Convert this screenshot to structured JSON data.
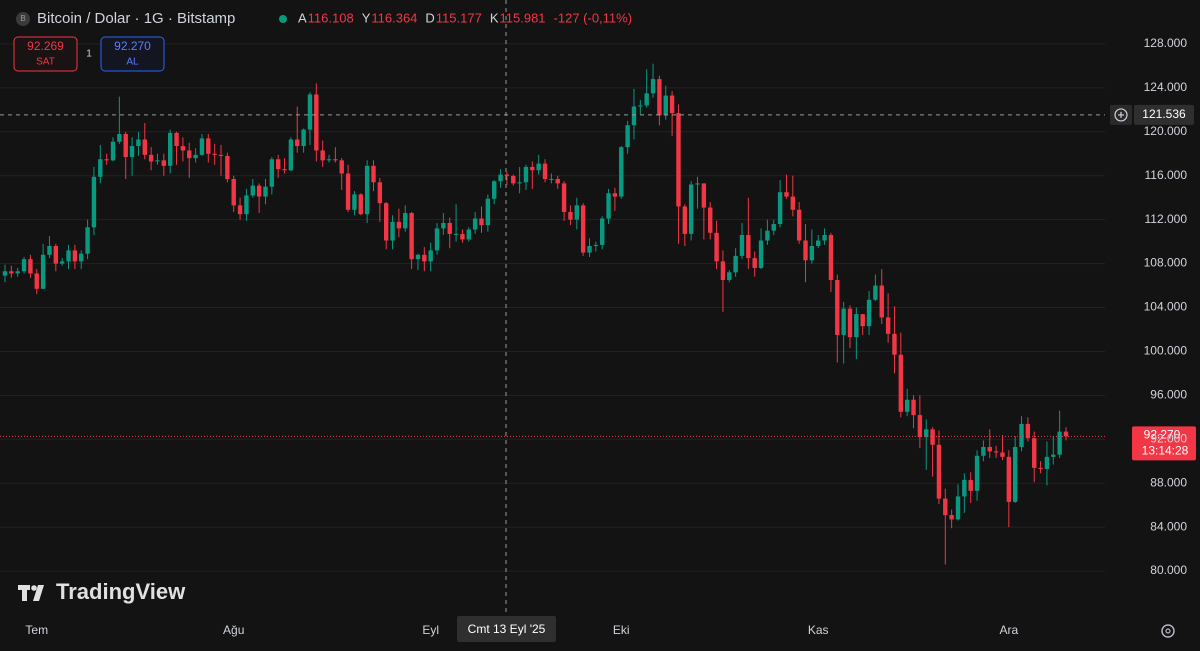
{
  "header": {
    "symbol": "Bitcoin / Dolar · 1G · Bitstamp",
    "ohlc": [
      {
        "key": "A",
        "value": "116.108"
      },
      {
        "key": "Y",
        "value": "116.364"
      },
      {
        "key": "D",
        "value": "115.177"
      },
      {
        "key": "K",
        "value": "115.981"
      }
    ],
    "change": "-127 (-0,11%)"
  },
  "trade": {
    "sell_price": "92.269",
    "sell_label": "SAT",
    "spread": "1",
    "buy_price": "92.270",
    "buy_label": "AL"
  },
  "brand": "TradingView",
  "chart_data": {
    "type": "candlestick",
    "up_color": "#089981",
    "down_color": "#f23645",
    "grid": true,
    "ylim": [
      76000,
      132000
    ],
    "yticks": [
      {
        "value": 80000,
        "label": "80.000"
      },
      {
        "value": 84000,
        "label": "84.000"
      },
      {
        "value": 88000,
        "label": "88.000"
      },
      {
        "value": 92000,
        "label": "92.000"
      },
      {
        "value": 96000,
        "label": "96.000"
      },
      {
        "value": 100000,
        "label": "100.000"
      },
      {
        "value": 104000,
        "label": "104.000"
      },
      {
        "value": 108000,
        "label": "108.000"
      },
      {
        "value": 112000,
        "label": "112.000"
      },
      {
        "value": 116000,
        "label": "116.000"
      },
      {
        "value": 120000,
        "label": "120.000"
      },
      {
        "value": 124000,
        "label": "124.000"
      },
      {
        "value": 128000,
        "label": "128.000"
      }
    ],
    "categories": [
      null,
      null,
      null,
      null,
      null,
      "Tem",
      null,
      null,
      null,
      null,
      null,
      null,
      null,
      null,
      null,
      null,
      null,
      null,
      null,
      null,
      null,
      null,
      null,
      null,
      null,
      null,
      null,
      null,
      null,
      null,
      null,
      null,
      null,
      null,
      null,
      null,
      "Ağu",
      null,
      null,
      null,
      null,
      null,
      null,
      null,
      null,
      null,
      null,
      null,
      null,
      null,
      null,
      null,
      null,
      null,
      null,
      null,
      null,
      null,
      null,
      null,
      null,
      null,
      null,
      null,
      null,
      null,
      null,
      "Eyl",
      null,
      null,
      null,
      null,
      null,
      null,
      null,
      null,
      null,
      null,
      null,
      null,
      null,
      null,
      null,
      null,
      null,
      null,
      null,
      null,
      null,
      null,
      null,
      null,
      null,
      null,
      null,
      null,
      null,
      "Eki",
      null,
      null,
      null,
      null,
      null,
      null,
      null,
      null,
      null,
      null,
      null,
      null,
      null,
      null,
      null,
      null,
      null,
      null,
      null,
      null,
      null,
      null,
      null,
      null,
      null,
      null,
      null,
      null,
      null,
      null,
      "Kas",
      null,
      null,
      null,
      null,
      null,
      null,
      null,
      null,
      null,
      null,
      null,
      null,
      null,
      null,
      null,
      null,
      null,
      null,
      null,
      null,
      null,
      null,
      null,
      null,
      null,
      null,
      null,
      null,
      null,
      "Ara",
      null,
      null,
      null,
      null,
      null,
      null,
      null,
      null,
      null
    ],
    "open": [
      106900,
      107300,
      107100,
      107300,
      108400,
      107100,
      105700,
      108800,
      109600,
      108000,
      108200,
      109200,
      108200,
      108900,
      111300,
      115900,
      117500,
      117400,
      119100,
      119800,
      117700,
      118700,
      119300,
      117900,
      117300,
      117400,
      116900,
      119900,
      118700,
      118300,
      117600,
      117900,
      119400,
      118000,
      117900,
      117800,
      115700,
      113300,
      112500,
      114200,
      115100,
      114100,
      115000,
      117500,
      116600,
      116500,
      119300,
      118700,
      120200,
      123400,
      118300,
      117400,
      117500,
      117400,
      116200,
      112900,
      114300,
      112500,
      116900,
      115400,
      113500,
      110100,
      111800,
      111200,
      112600,
      108400,
      108800,
      108200,
      109200,
      111200,
      111700,
      110700,
      110700,
      110200,
      111100,
      112100,
      111500,
      113900,
      115500,
      116108,
      115981,
      115300,
      115400,
      116800,
      116500,
      117100,
      115700,
      115700,
      115300,
      112700,
      112000,
      113300,
      109000,
      109600,
      109700,
      112100,
      114400,
      114100,
      118600,
      120600,
      122300,
      122400,
      123500,
      124800,
      121500,
      123300,
      121700,
      113200,
      110700,
      115200,
      115300,
      113100,
      110800,
      108200,
      106500,
      107200,
      108700,
      110600,
      108500,
      107600,
      110100,
      111000,
      111600,
      114500,
      114100,
      112900,
      110100,
      108300,
      109600,
      110100,
      110600,
      106500,
      101500,
      103900,
      101300,
      103400,
      102300,
      104700,
      106000,
      103100,
      101600,
      99700,
      94500,
      95600,
      94200,
      92200,
      92900,
      91500,
      86600,
      85100,
      84700,
      86800,
      88300,
      87300,
      90500,
      91300,
      90900,
      90800,
      90400,
      86300,
      91300,
      93400,
      92100,
      89400,
      89300,
      90400,
      90600,
      92700
    ],
    "high": [
      107900,
      107800,
      107600,
      108600,
      108800,
      107500,
      109800,
      110500,
      109800,
      108500,
      109700,
      109700,
      109200,
      112000,
      116800,
      118800,
      118000,
      119500,
      123200,
      120000,
      119500,
      120000,
      120800,
      118600,
      118000,
      118000,
      120200,
      120000,
      119500,
      119000,
      118500,
      119800,
      119800,
      118900,
      118800,
      118100,
      116000,
      114000,
      114800,
      115700,
      115300,
      115700,
      117700,
      117900,
      117600,
      119500,
      122300,
      120300,
      123600,
      124400,
      119200,
      117900,
      118600,
      117600,
      117000,
      114600,
      114400,
      117400,
      117400,
      115800,
      113600,
      112400,
      113000,
      113300,
      112700,
      108900,
      109500,
      109900,
      111700,
      112600,
      112200,
      113400,
      111100,
      111300,
      112700,
      113200,
      114300,
      115600,
      116600,
      116364,
      116100,
      116800,
      117000,
      117300,
      117900,
      117500,
      116200,
      116000,
      115500,
      113300,
      114000,
      113500,
      110300,
      110000,
      112300,
      114800,
      114900,
      118700,
      121000,
      123900,
      122900,
      125700,
      126200,
      125100,
      124200,
      123700,
      122500,
      113400,
      115500,
      115900,
      115300,
      113600,
      111900,
      109200,
      107400,
      109400,
      111700,
      114000,
      109100,
      111200,
      112000,
      112000,
      115600,
      116100,
      116000,
      113600,
      111600,
      111100,
      110600,
      111200,
      110800,
      107000,
      104500,
      104200,
      104000,
      103400,
      105500,
      107000,
      107500,
      105300,
      104100,
      101700,
      96600,
      96000,
      96000,
      93800,
      93100,
      92800,
      87500,
      85600,
      87900,
      88900,
      89000,
      91000,
      91900,
      92900,
      91400,
      92400,
      91000,
      92300,
      94100,
      94000,
      92700,
      90000,
      91800,
      92300,
      94600,
      93100
    ],
    "low": [
      106300,
      106700,
      106800,
      107100,
      106700,
      105200,
      105700,
      108500,
      107300,
      107800,
      107500,
      107500,
      107500,
      108400,
      110600,
      115300,
      117000,
      117300,
      118900,
      115700,
      116000,
      117800,
      117500,
      116500,
      117000,
      116000,
      116200,
      117000,
      117300,
      115800,
      117200,
      117800,
      117200,
      117000,
      116000,
      115400,
      112700,
      112000,
      111900,
      114000,
      112600,
      113400,
      114300,
      115800,
      116200,
      116400,
      118100,
      118100,
      118800,
      117300,
      116800,
      117200,
      117200,
      114700,
      112700,
      112400,
      112400,
      111700,
      114600,
      111800,
      109300,
      109300,
      110400,
      110900,
      107500,
      107400,
      107300,
      107300,
      108800,
      110600,
      109400,
      110000,
      109900,
      110000,
      110700,
      110800,
      110900,
      113400,
      114900,
      115177,
      115100,
      114400,
      114700,
      114800,
      116100,
      115400,
      115300,
      114800,
      111900,
      111500,
      111100,
      108700,
      108600,
      109100,
      109300,
      111600,
      112800,
      113900,
      118000,
      119300,
      121600,
      122200,
      123100,
      120600,
      121100,
      119600,
      109800,
      109600,
      110100,
      113000,
      110200,
      110200,
      107500,
      103600,
      106300,
      106800,
      108400,
      107500,
      106800,
      107500,
      109700,
      110600,
      111300,
      113900,
      112300,
      109800,
      106300,
      108000,
      109400,
      109700,
      105400,
      99000,
      98900,
      100300,
      99300,
      101500,
      101500,
      104600,
      102500,
      100800,
      98000,
      94000,
      94100,
      93000,
      91200,
      89200,
      88600,
      86100,
      80600,
      83900,
      84600,
      85300,
      86200,
      86400,
      90000,
      90300,
      90300,
      90100,
      84000,
      86200,
      90900,
      91800,
      88100,
      88900,
      87800,
      89700,
      90300,
      91900
    ],
    "close": [
      107300,
      107100,
      107300,
      108400,
      107100,
      105700,
      108800,
      109600,
      108000,
      108200,
      109200,
      108200,
      108900,
      111300,
      115900,
      117500,
      117400,
      119100,
      119800,
      117700,
      118700,
      119300,
      117900,
      117300,
      117400,
      116900,
      119900,
      118700,
      118300,
      117600,
      117900,
      119400,
      118000,
      117900,
      117800,
      115700,
      113300,
      112500,
      114200,
      115100,
      114100,
      115000,
      117500,
      116600,
      116500,
      119300,
      118700,
      120200,
      123400,
      118300,
      117400,
      117500,
      117400,
      116200,
      112900,
      114300,
      112500,
      116900,
      115400,
      113500,
      110100,
      111800,
      111200,
      112600,
      108400,
      108800,
      108200,
      109200,
      111200,
      111700,
      110700,
      110700,
      110200,
      111100,
      112100,
      111500,
      113900,
      115500,
      116100,
      115981,
      115300,
      115400,
      116800,
      116500,
      117100,
      115700,
      115700,
      115300,
      112700,
      112000,
      113300,
      109000,
      109600,
      109700,
      112100,
      114400,
      114100,
      118600,
      120600,
      122300,
      122400,
      123500,
      124800,
      121500,
      123300,
      121700,
      113200,
      110700,
      115200,
      115300,
      113100,
      110800,
      108200,
      106500,
      107200,
      108700,
      110600,
      108500,
      107600,
      110100,
      111000,
      111600,
      114500,
      114100,
      112900,
      110100,
      108300,
      109600,
      110100,
      110600,
      106500,
      101500,
      103900,
      101300,
      103400,
      102300,
      104700,
      106000,
      103100,
      101600,
      99700,
      94500,
      95600,
      94200,
      92200,
      92900,
      91500,
      86600,
      85100,
      84700,
      86800,
      88300,
      87300,
      90500,
      91300,
      90900,
      90800,
      90400,
      86300,
      91300,
      93400,
      92100,
      89400,
      89300,
      90400,
      90600,
      92700,
      92270
    ],
    "last_price": {
      "value": 92270,
      "label": "92.270",
      "countdown": "13:14:28"
    },
    "crosshair": {
      "value": 121536,
      "label": "121.536",
      "date": "Cmt 13 Eyl '25"
    }
  }
}
